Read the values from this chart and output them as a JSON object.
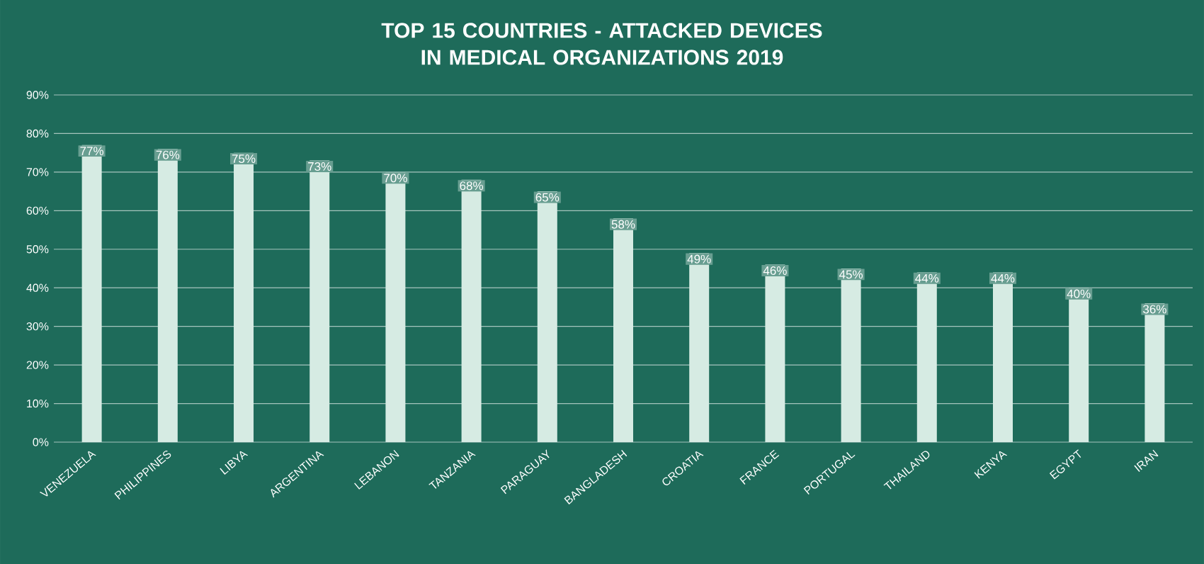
{
  "chart_data": {
    "type": "bar",
    "title": "TOP 15 COUNTRIES - ATTACKED DEVICES IN MEDICAL ORGANIZATIONS 2019",
    "categories": [
      "VENEZUELA",
      "PHILIPPINES",
      "LIBYA",
      "ARGENTINA",
      "LEBANON",
      "TANZANIA",
      "PARAGUAY",
      "BANGLADESH",
      "CROATIA",
      "FRANCE",
      "PORTUGAL",
      "THAILAND",
      "KENYA",
      "EGYPT",
      "IRAN"
    ],
    "values": [
      77,
      76,
      75,
      73,
      70,
      68,
      65,
      58,
      49,
      46,
      45,
      44,
      44,
      40,
      36
    ],
    "value_labels": [
      "77%",
      "76%",
      "75%",
      "73%",
      "70%",
      "68%",
      "65%",
      "58%",
      "49%",
      "46%",
      "45%",
      "44%",
      "44%",
      "40%",
      "36%"
    ],
    "color": "#d6ebe3",
    "ylim": [
      0,
      90
    ],
    "yticks": [
      {
        "value": 0,
        "label": "0%"
      },
      {
        "value": 10,
        "label": "10%"
      },
      {
        "value": 20,
        "label": "20%"
      },
      {
        "value": 30,
        "label": "30%"
      },
      {
        "value": 40,
        "label": "40%"
      },
      {
        "value": 50,
        "label": "50%"
      },
      {
        "value": 60,
        "label": "60%"
      },
      {
        "value": 70,
        "label": "70%"
      },
      {
        "value": 80,
        "label": "80%"
      },
      {
        "value": 90,
        "label": "90%"
      }
    ],
    "grid": "y"
  }
}
